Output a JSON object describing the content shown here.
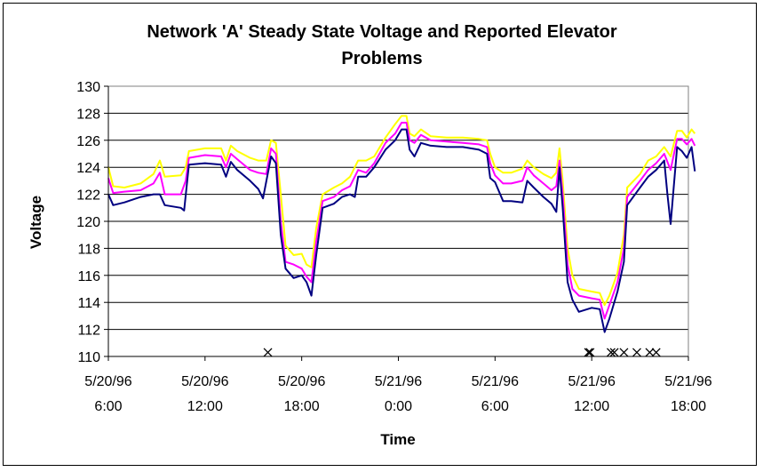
{
  "chart_data": {
    "type": "line",
    "title": "Network 'A' Steady State Voltage and Reported Elevator Problems",
    "title_lines": [
      "Network 'A' Steady State Voltage and Reported Elevator",
      "Problems"
    ],
    "xlabel": "Time",
    "ylabel": "Voltage",
    "ylim": [
      110,
      130
    ],
    "yticks": [
      110,
      112,
      114,
      116,
      118,
      120,
      122,
      124,
      126,
      128,
      130
    ],
    "xlim": [
      6,
      42
    ],
    "x_unit": "hours from 5/20/96 0:00",
    "xticks": [
      {
        "x": 6,
        "date": "5/20/96",
        "time": "6:00"
      },
      {
        "x": 12,
        "date": "5/20/96",
        "time": "12:00"
      },
      {
        "x": 18,
        "date": "5/20/96",
        "time": "18:00"
      },
      {
        "x": 24,
        "date": "5/21/96",
        "time": "0:00"
      },
      {
        "x": 30,
        "date": "5/21/96",
        "time": "6:00"
      },
      {
        "x": 36,
        "date": "5/21/96",
        "time": "12:00"
      },
      {
        "x": 42,
        "date": "5/21/96",
        "time": "18:00"
      }
    ],
    "grid": {
      "horizontal": true,
      "vertical": false
    },
    "legend": "none",
    "series": [
      {
        "color": "#ffff00",
        "points": [
          [
            6,
            124
          ],
          [
            6.3,
            122.6
          ],
          [
            7,
            122.5
          ],
          [
            8,
            122.8
          ],
          [
            8.8,
            123.5
          ],
          [
            9.2,
            124.5
          ],
          [
            9.5,
            123.3
          ],
          [
            10.5,
            123.4
          ],
          [
            10.8,
            124
          ],
          [
            11,
            125.2
          ],
          [
            12,
            125.4
          ],
          [
            13,
            125.4
          ],
          [
            13.3,
            124.5
          ],
          [
            13.6,
            125.6
          ],
          [
            14,
            125.2
          ],
          [
            14.8,
            124.7
          ],
          [
            15.3,
            124.5
          ],
          [
            15.8,
            124.5
          ],
          [
            16.1,
            126
          ],
          [
            16.4,
            125.8
          ],
          [
            16.7,
            122
          ],
          [
            17,
            118.2
          ],
          [
            17.5,
            117.5
          ],
          [
            18,
            117.6
          ],
          [
            18.3,
            116.8
          ],
          [
            18.6,
            116.6
          ],
          [
            18.9,
            119.5
          ],
          [
            19.3,
            122
          ],
          [
            20,
            122.5
          ],
          [
            20.5,
            122.8
          ],
          [
            21,
            123.3
          ],
          [
            21.5,
            124.5
          ],
          [
            22,
            124.5
          ],
          [
            22.5,
            124.8
          ],
          [
            23.2,
            126.2
          ],
          [
            23.8,
            127.2
          ],
          [
            24.2,
            127.8
          ],
          [
            24.5,
            127.8
          ],
          [
            24.7,
            126.5
          ],
          [
            25,
            126.3
          ],
          [
            25.4,
            126.8
          ],
          [
            26,
            126.3
          ],
          [
            27,
            126.2
          ],
          [
            28,
            126.2
          ],
          [
            29,
            126.1
          ],
          [
            29.5,
            126
          ],
          [
            29.7,
            125
          ],
          [
            30,
            124
          ],
          [
            30.5,
            123.6
          ],
          [
            31,
            123.6
          ],
          [
            31.7,
            123.9
          ],
          [
            32,
            124.5
          ],
          [
            32.4,
            124
          ],
          [
            33,
            123.5
          ],
          [
            33.5,
            123.2
          ],
          [
            33.8,
            123.6
          ],
          [
            34,
            125.4
          ],
          [
            34.2,
            123
          ],
          [
            34.5,
            118
          ],
          [
            34.8,
            116
          ],
          [
            35.2,
            115
          ],
          [
            36,
            114.8
          ],
          [
            36.5,
            114.7
          ],
          [
            36.8,
            113.8
          ],
          [
            37.1,
            114.5
          ],
          [
            37.6,
            116.2
          ],
          [
            38,
            119
          ],
          [
            38.2,
            122.5
          ],
          [
            39,
            123.5
          ],
          [
            39.5,
            124.5
          ],
          [
            40,
            124.8
          ],
          [
            40.5,
            125.5
          ],
          [
            40.9,
            124.8
          ],
          [
            41.3,
            126.7
          ],
          [
            41.6,
            126.7
          ],
          [
            41.9,
            126.2
          ],
          [
            42.2,
            126.8
          ],
          [
            42.4,
            126.5
          ]
        ]
      },
      {
        "color": "#ff00ff",
        "points": [
          [
            6,
            123.2
          ],
          [
            6.3,
            122.1
          ],
          [
            7,
            122.2
          ],
          [
            8,
            122.3
          ],
          [
            8.8,
            122.8
          ],
          [
            9.2,
            123.6
          ],
          [
            9.5,
            122
          ],
          [
            10.5,
            122
          ],
          [
            10.8,
            123
          ],
          [
            11,
            124.7
          ],
          [
            12,
            124.9
          ],
          [
            13,
            124.8
          ],
          [
            13.3,
            124
          ],
          [
            13.6,
            125
          ],
          [
            14,
            124.6
          ],
          [
            14.8,
            123.8
          ],
          [
            15.3,
            123.6
          ],
          [
            15.8,
            123.5
          ],
          [
            16.1,
            125.4
          ],
          [
            16.4,
            125
          ],
          [
            16.7,
            120
          ],
          [
            17,
            117
          ],
          [
            17.5,
            116.8
          ],
          [
            18,
            116.5
          ],
          [
            18.3,
            115.9
          ],
          [
            18.6,
            115.5
          ],
          [
            18.9,
            118.5
          ],
          [
            19.3,
            121.5
          ],
          [
            20,
            121.8
          ],
          [
            20.5,
            122.3
          ],
          [
            21,
            122.6
          ],
          [
            21.5,
            123.8
          ],
          [
            22,
            123.6
          ],
          [
            22.5,
            124.3
          ],
          [
            23.2,
            125.8
          ],
          [
            23.8,
            126.5
          ],
          [
            24.2,
            127.3
          ],
          [
            24.5,
            127.3
          ],
          [
            24.7,
            126
          ],
          [
            25,
            125.8
          ],
          [
            25.4,
            126.4
          ],
          [
            26,
            126
          ],
          [
            27,
            125.9
          ],
          [
            28,
            125.8
          ],
          [
            29,
            125.7
          ],
          [
            29.5,
            125.5
          ],
          [
            29.7,
            124.3
          ],
          [
            30,
            123.4
          ],
          [
            30.5,
            122.8
          ],
          [
            31,
            122.8
          ],
          [
            31.7,
            123
          ],
          [
            32,
            124
          ],
          [
            32.4,
            123.4
          ],
          [
            33,
            122.8
          ],
          [
            33.5,
            122.3
          ],
          [
            33.8,
            122.6
          ],
          [
            34,
            124.5
          ],
          [
            34.2,
            122
          ],
          [
            34.5,
            116.8
          ],
          [
            34.8,
            115
          ],
          [
            35.2,
            114.5
          ],
          [
            36,
            114.3
          ],
          [
            36.5,
            114.2
          ],
          [
            36.8,
            112.8
          ],
          [
            37.1,
            113.8
          ],
          [
            37.6,
            115.5
          ],
          [
            38,
            118
          ],
          [
            38.2,
            121.8
          ],
          [
            39,
            123
          ],
          [
            39.5,
            123.8
          ],
          [
            40,
            124.3
          ],
          [
            40.5,
            125
          ],
          [
            40.9,
            123.8
          ],
          [
            41.3,
            126.1
          ],
          [
            41.6,
            126.1
          ],
          [
            41.9,
            125.7
          ],
          [
            42.2,
            126.1
          ],
          [
            42.4,
            125.6
          ]
        ]
      },
      {
        "color": "#000080",
        "points": [
          [
            6,
            122
          ],
          [
            6.3,
            121.2
          ],
          [
            7,
            121.4
          ],
          [
            8,
            121.8
          ],
          [
            8.8,
            122
          ],
          [
            9.2,
            122
          ],
          [
            9.5,
            121.2
          ],
          [
            10.5,
            121
          ],
          [
            10.7,
            120.8
          ],
          [
            11,
            124.2
          ],
          [
            12,
            124.3
          ],
          [
            13,
            124.2
          ],
          [
            13.3,
            123.3
          ],
          [
            13.6,
            124.4
          ],
          [
            14,
            123.8
          ],
          [
            14.8,
            123
          ],
          [
            15.3,
            122.4
          ],
          [
            15.6,
            121.7
          ],
          [
            16.1,
            124.8
          ],
          [
            16.4,
            124.3
          ],
          [
            16.7,
            119
          ],
          [
            17,
            116.5
          ],
          [
            17.5,
            115.8
          ],
          [
            18,
            116
          ],
          [
            18.3,
            115.5
          ],
          [
            18.6,
            114.5
          ],
          [
            18.9,
            117.5
          ],
          [
            19.3,
            121
          ],
          [
            20,
            121.3
          ],
          [
            20.5,
            121.8
          ],
          [
            21,
            122
          ],
          [
            21.3,
            121.8
          ],
          [
            21.5,
            123.3
          ],
          [
            22,
            123.3
          ],
          [
            22.5,
            124
          ],
          [
            23.2,
            125.3
          ],
          [
            23.8,
            126
          ],
          [
            24.2,
            126.8
          ],
          [
            24.5,
            126.8
          ],
          [
            24.7,
            125.3
          ],
          [
            25,
            124.8
          ],
          [
            25.4,
            125.8
          ],
          [
            26,
            125.6
          ],
          [
            27,
            125.5
          ],
          [
            28,
            125.5
          ],
          [
            29,
            125.3
          ],
          [
            29.5,
            125
          ],
          [
            29.7,
            123.2
          ],
          [
            30,
            122.9
          ],
          [
            30.5,
            121.5
          ],
          [
            31,
            121.5
          ],
          [
            31.7,
            121.4
          ],
          [
            32,
            123
          ],
          [
            32.4,
            122.5
          ],
          [
            33,
            121.8
          ],
          [
            33.5,
            121.3
          ],
          [
            33.8,
            120.7
          ],
          [
            34,
            124
          ],
          [
            34.2,
            121
          ],
          [
            34.5,
            115.5
          ],
          [
            34.8,
            114.2
          ],
          [
            35.2,
            113.3
          ],
          [
            36,
            113.6
          ],
          [
            36.5,
            113.5
          ],
          [
            36.8,
            111.8
          ],
          [
            37.1,
            112.8
          ],
          [
            37.6,
            114.8
          ],
          [
            38,
            117
          ],
          [
            38.2,
            121.2
          ],
          [
            39,
            122.5
          ],
          [
            39.5,
            123.3
          ],
          [
            40,
            123.8
          ],
          [
            40.5,
            124.5
          ],
          [
            40.7,
            122
          ],
          [
            40.9,
            119.8
          ],
          [
            41.3,
            125.5
          ],
          [
            41.6,
            125.2
          ],
          [
            41.9,
            124.7
          ],
          [
            42.2,
            125.5
          ],
          [
            42.4,
            123.7
          ]
        ]
      }
    ],
    "markers": {
      "symbol": "×",
      "label": "Reported Elevator Problems",
      "y": 110.3,
      "x": [
        15.9,
        35.8,
        35.9,
        37.2,
        37.4,
        38,
        38.8,
        39.6,
        40
      ]
    }
  }
}
